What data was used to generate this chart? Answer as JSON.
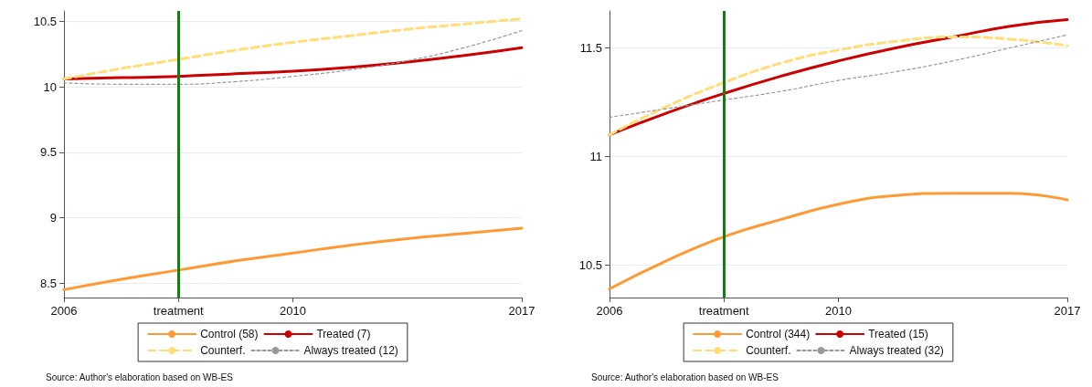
{
  "chart_data": [
    {
      "type": "line",
      "categories": [
        "2006",
        null,
        "treatment",
        null,
        "2010",
        null,
        null,
        null,
        "2017"
      ],
      "ylim": [
        8.39,
        10.58
      ],
      "yticks": [
        8.5,
        9,
        9.5,
        10,
        10.5
      ],
      "grid": "y",
      "legend": "bottom",
      "marker": "none",
      "series": [
        {
          "name": "Control (58)",
          "color": "#ff9933",
          "line_style": "solid",
          "values": [
            8.45,
            8.53,
            8.6,
            8.67,
            8.73,
            8.79,
            8.84,
            8.88,
            8.92
          ]
        },
        {
          "name": "Treated (7)",
          "color": "#cc0000",
          "line_style": "solid",
          "values": [
            10.06,
            10.07,
            10.08,
            10.1,
            10.12,
            10.15,
            10.19,
            10.24,
            10.3
          ]
        },
        {
          "name": "Counterf.",
          "color": "#ffdd77",
          "line_style": "dashed",
          "values": [
            10.06,
            10.14,
            10.21,
            10.28,
            10.34,
            10.39,
            10.44,
            10.48,
            10.52
          ]
        },
        {
          "name": "Always treated (12)",
          "color": "#999999",
          "line_style": "dotted",
          "values": [
            10.03,
            10.02,
            10.02,
            10.04,
            10.08,
            10.13,
            10.2,
            10.3,
            10.43
          ]
        }
      ],
      "ref_lines": [
        {
          "axis": "x",
          "value": "treatment",
          "color": "#108010",
          "line_style": "solid"
        }
      ],
      "annotations": [
        "Source: Author's elaboration based on WB-ES"
      ]
    },
    {
      "type": "line",
      "categories": [
        "2006",
        null,
        "treatment",
        null,
        "2010",
        null,
        null,
        null,
        "2017"
      ],
      "ylim": [
        10.35,
        11.67
      ],
      "yticks": [
        10.5,
        11,
        11.5
      ],
      "grid": "y",
      "legend": "bottom",
      "marker": "none",
      "series": [
        {
          "name": "Control (344)",
          "color": "#ff9933",
          "line_style": "solid",
          "values": [
            10.39,
            10.52,
            10.63,
            10.71,
            10.78,
            10.82,
            10.83,
            10.83,
            10.8
          ]
        },
        {
          "name": "Treated (15)",
          "color": "#cc0000",
          "line_style": "solid",
          "values": [
            11.1,
            11.2,
            11.29,
            11.37,
            11.44,
            11.5,
            11.55,
            11.6,
            11.63
          ]
        },
        {
          "name": "Counterf.",
          "color": "#ffdd77",
          "line_style": "dashed",
          "values": [
            11.1,
            11.23,
            11.34,
            11.43,
            11.49,
            11.53,
            11.55,
            11.54,
            11.51
          ]
        },
        {
          "name": "Always treated (32)",
          "color": "#999999",
          "line_style": "dotted",
          "values": [
            11.18,
            11.22,
            11.26,
            11.3,
            11.35,
            11.39,
            11.44,
            11.5,
            11.56
          ]
        }
      ],
      "ref_lines": [
        {
          "axis": "x",
          "value": "treatment",
          "color": "#108010",
          "line_style": "solid"
        }
      ],
      "annotations": [
        "Source: Author's elaboration based on WB-ES"
      ]
    }
  ]
}
